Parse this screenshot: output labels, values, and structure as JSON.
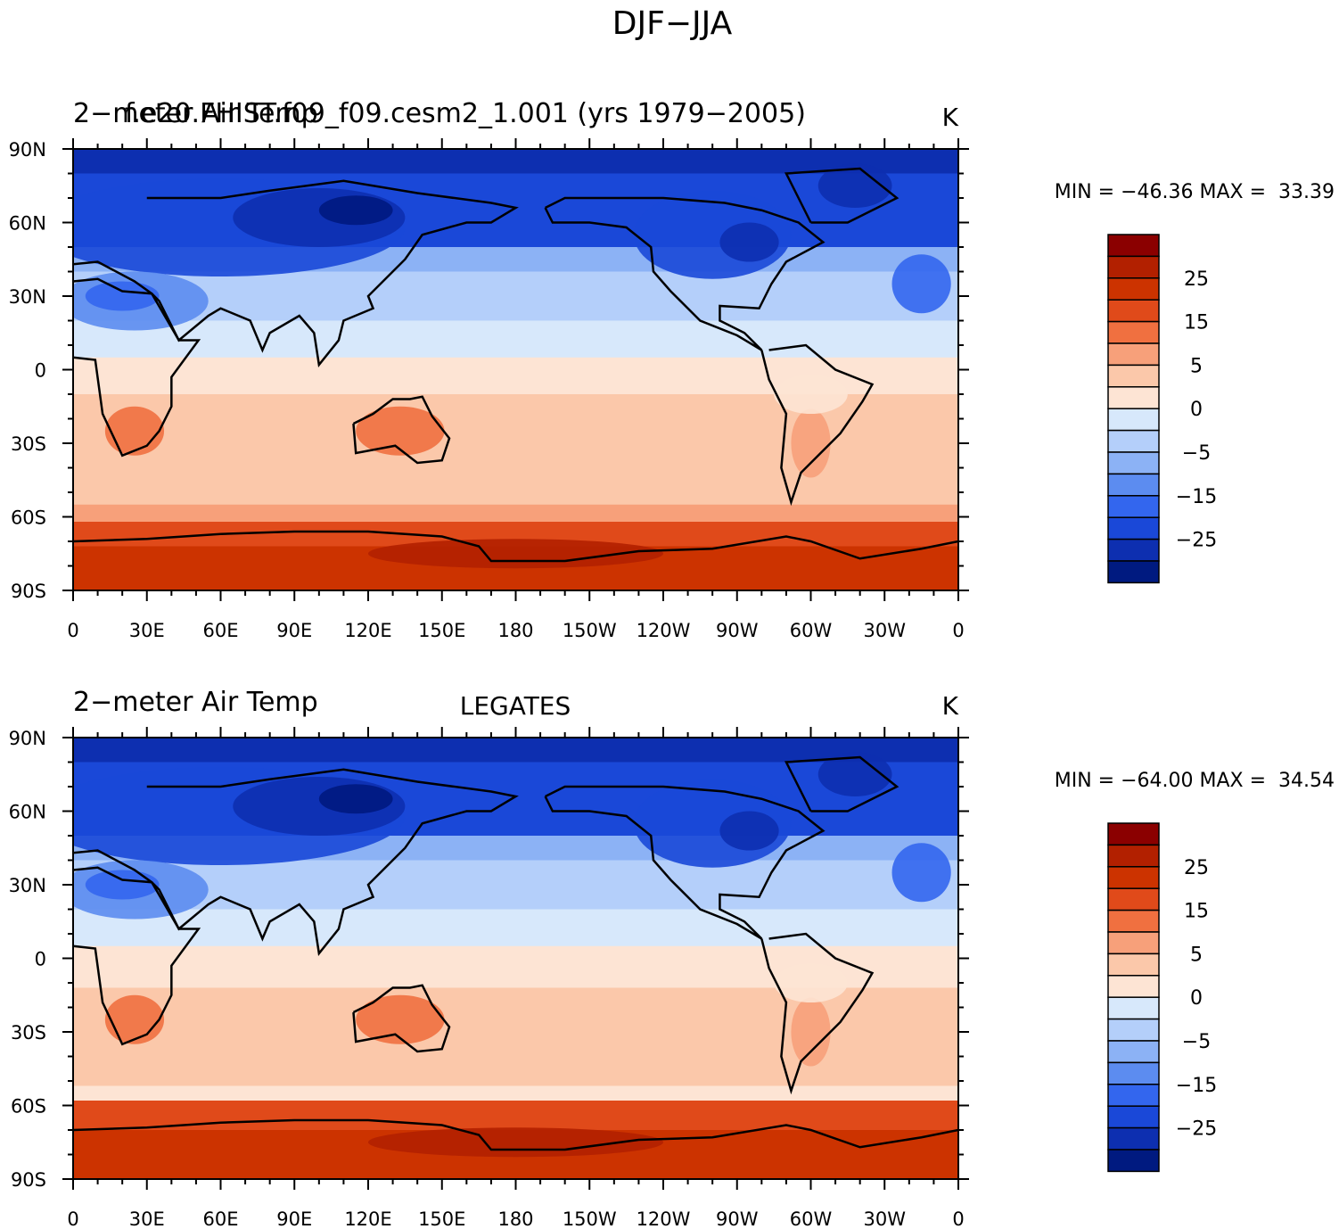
{
  "title": "DJF−JJA",
  "lat_labels": [
    "90N",
    "60N",
    "30N",
    "0",
    "30S",
    "60S",
    "90S"
  ],
  "lon_labels": [
    "0",
    "30E",
    "60E",
    "90E",
    "120E",
    "150E",
    "180",
    "150W",
    "120W",
    "90W",
    "60W",
    "30W",
    "0"
  ],
  "colorbar": {
    "labels": [
      "25",
      "15",
      "5",
      "0",
      "−5",
      "−15",
      "−25"
    ],
    "colors": [
      "#8b0000",
      "#b22000",
      "#cc3300",
      "#e04a1a",
      "#f07040",
      "#f7a07a",
      "#fbc8aa",
      "#fde4d4",
      "#d7e8fb",
      "#b4cffa",
      "#8cb2f5",
      "#5c8cf0",
      "#3366ee",
      "#1a48d8",
      "#0d2fb0",
      "#001a80"
    ]
  },
  "panels": [
    {
      "left_title": "2−meter Air Temp",
      "case": "f.e20.FHIST.f09_f09.cesm2_1.001 (yrs 1979−2005)",
      "units": "K",
      "stats": "MIN = −46.36 MAX =  33.39"
    },
    {
      "left_title": "2−meter Air Temp",
      "center_title": "LEGATES",
      "units": "K",
      "stats": "MIN = −64.00 MAX =  34.54"
    }
  ]
}
